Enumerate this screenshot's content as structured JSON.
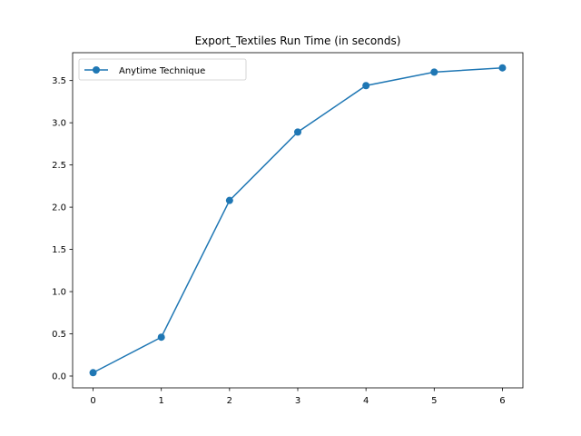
{
  "chart_data": {
    "type": "line",
    "title": "Export_Textiles Run Time (in seconds)",
    "xlabel": "",
    "ylabel": "",
    "x": [
      0,
      1,
      2,
      3,
      4,
      5,
      6
    ],
    "series": [
      {
        "name": "Anytime Technique",
        "values": [
          0.04,
          0.46,
          2.08,
          2.89,
          3.44,
          3.6,
          3.65
        ],
        "color": "#1f77b4",
        "marker": "circle"
      }
    ],
    "xlim": [
      -0.3,
      6.3
    ],
    "ylim": [
      -0.14,
      3.83
    ],
    "xticks": [
      "0",
      "1",
      "2",
      "3",
      "4",
      "5",
      "6"
    ],
    "yticks": [
      "0.0",
      "0.5",
      "1.0",
      "1.5",
      "2.0",
      "2.5",
      "3.0",
      "3.5"
    ],
    "grid": false,
    "legend": "top-left"
  }
}
